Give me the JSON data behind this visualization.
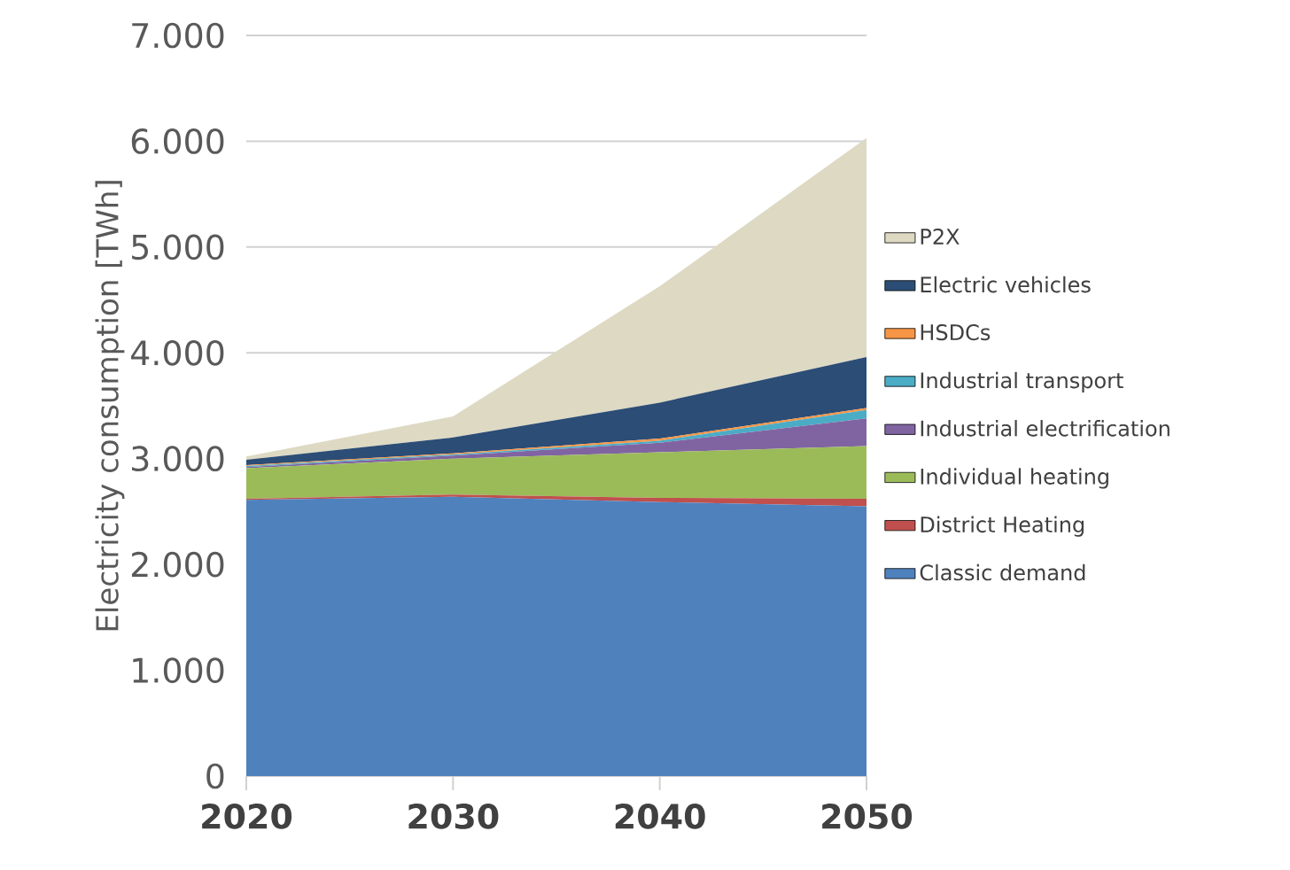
{
  "chart_data": {
    "type": "area",
    "stacked": true,
    "ylabel": "Electricity consumption [TWh]",
    "categories": [
      "2020",
      "2030",
      "2040",
      "2050"
    ],
    "series": [
      {
        "name": "Classic demand",
        "color": "#4f81bd",
        "values": [
          2610,
          2640,
          2590,
          2550
        ]
      },
      {
        "name": "District Heating",
        "color": "#c0504d",
        "values": [
          10,
          20,
          40,
          70
        ]
      },
      {
        "name": "Individual heating",
        "color": "#9bbb59",
        "values": [
          290,
          340,
          430,
          500
        ]
      },
      {
        "name": "Industrial electrification",
        "color": "#8064a2",
        "values": [
          10,
          30,
          90,
          260
        ]
      },
      {
        "name": "Industrial transport",
        "color": "#4bacc6",
        "values": [
          10,
          10,
          20,
          80
        ]
      },
      {
        "name": "HSDCs",
        "color": "#f79646",
        "values": [
          10,
          10,
          20,
          20
        ]
      },
      {
        "name": "Electric vehicles",
        "color": "#2c4d75",
        "values": [
          50,
          150,
          340,
          480
        ]
      },
      {
        "name": "P2X",
        "color": "#ddd9c3",
        "values": [
          30,
          200,
          1100,
          2070
        ]
      }
    ],
    "ylim": [
      0,
      7000
    ],
    "yticks": [
      {
        "value": 0,
        "label": "0"
      },
      {
        "value": 1000,
        "label": "1.000"
      },
      {
        "value": 2000,
        "label": "2.000"
      },
      {
        "value": 3000,
        "label": "3.000"
      },
      {
        "value": 4000,
        "label": "4.000"
      },
      {
        "value": 5000,
        "label": "5.000"
      },
      {
        "value": 6000,
        "label": "6.000"
      },
      {
        "value": 7000,
        "label": "7.000"
      }
    ],
    "grid": "y",
    "legend": "right"
  }
}
